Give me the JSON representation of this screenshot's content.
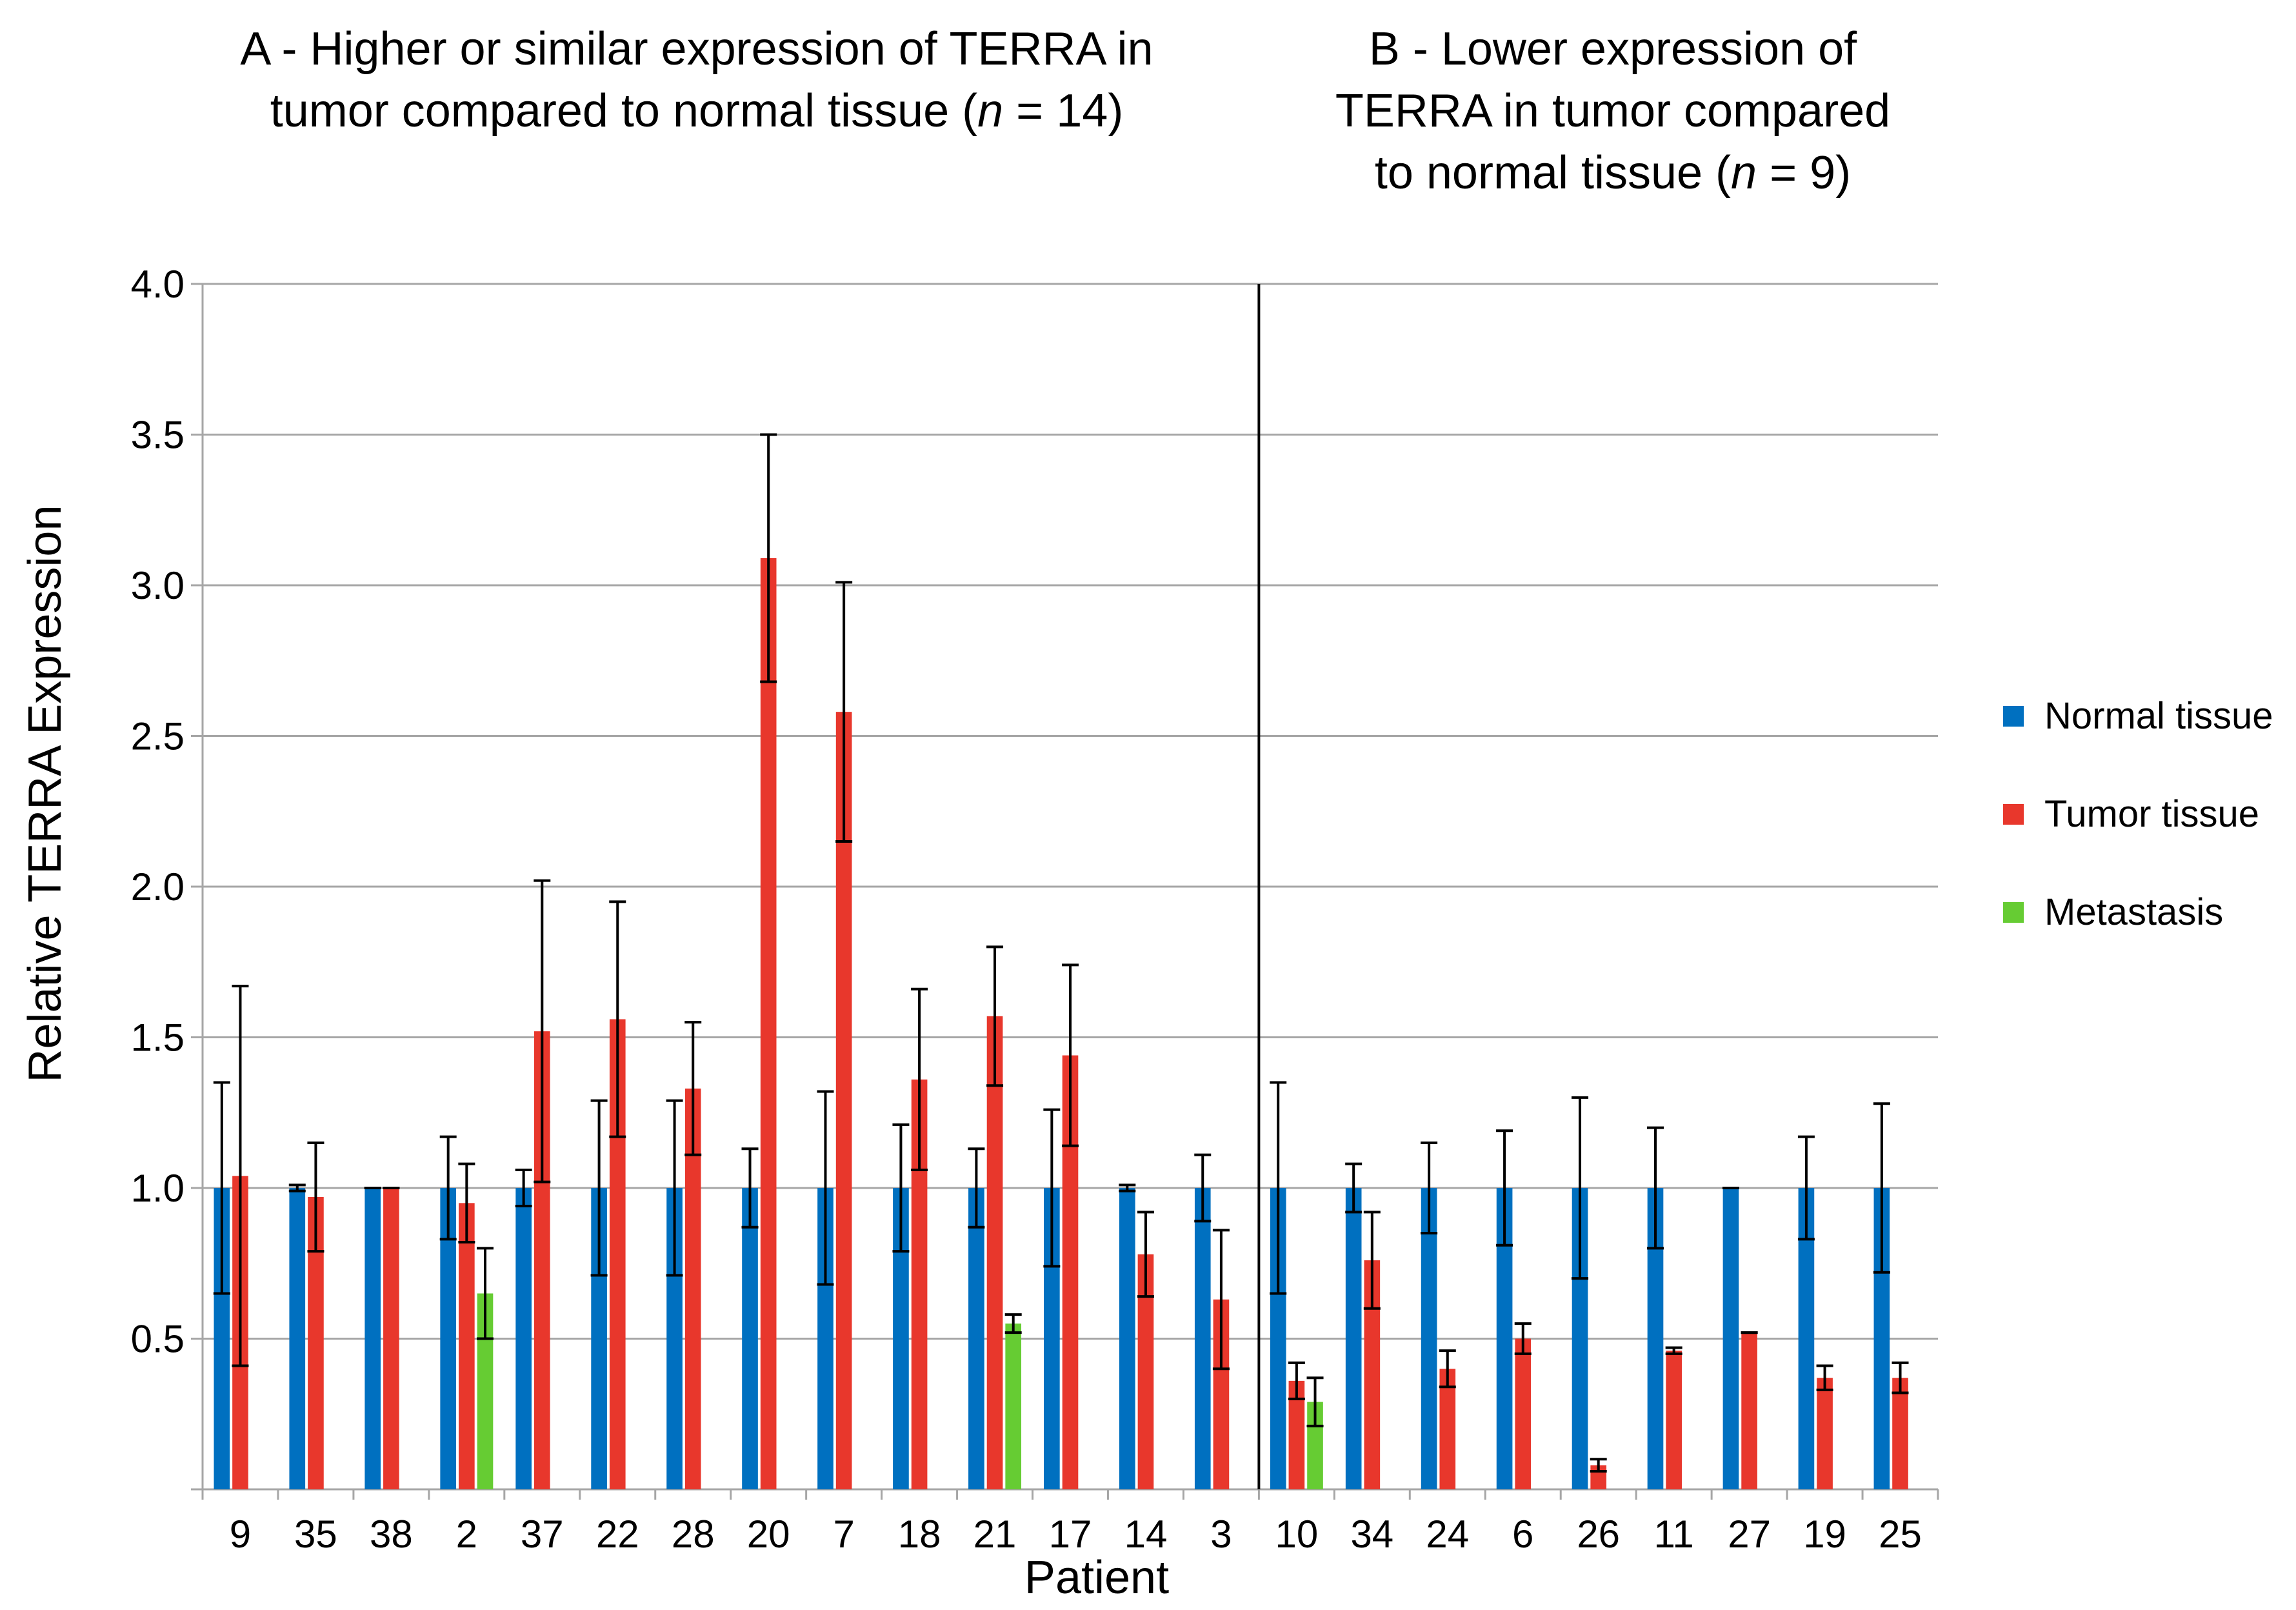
{
  "titles": {
    "a_line1": "A - Higher or similar expression of TERRA in",
    "a_line2_pre": "tumor compared to normal tissue (",
    "a_line2_n": "n",
    "a_line2_post": " = 14)",
    "b_line1": "B - Lower expression of",
    "b_line2": "TERRA in tumor compared",
    "b_line3_pre": "to normal tissue (",
    "b_line3_n": "n",
    "b_line3_post": " = 9)"
  },
  "legend": [
    {
      "label": "Normal tissue",
      "color": "#0070c0"
    },
    {
      "label": "Tumor tissue",
      "color": "#e8372c"
    },
    {
      "label": "Metastasis",
      "color": "#66cc33"
    }
  ],
  "chart_data": {
    "type": "bar",
    "xlabel": "Patient",
    "ylabel": "Relative TERRA Expression",
    "ylim": [
      0,
      4.0
    ],
    "yticks": [
      "0.5",
      "1.0",
      "1.5",
      "2.0",
      "2.5",
      "3.0",
      "3.5",
      "4.0"
    ],
    "grid": true,
    "legend_position": "right",
    "divider_after_category": "3",
    "categories": [
      "9",
      "35",
      "38",
      "2",
      "37",
      "22",
      "28",
      "20",
      "7",
      "18",
      "21",
      "17",
      "14",
      "3",
      "10",
      "34",
      "24",
      "6",
      "26",
      "11",
      "27",
      "19",
      "25"
    ],
    "series": [
      {
        "name": "Normal tissue",
        "color": "#0070c0",
        "values": [
          1.0,
          1.0,
          1.0,
          1.0,
          1.0,
          1.0,
          1.0,
          1.0,
          1.0,
          1.0,
          1.0,
          1.0,
          1.0,
          1.0,
          1.0,
          1.0,
          1.0,
          1.0,
          1.0,
          1.0,
          1.0,
          1.0,
          1.0
        ],
        "errors": [
          0.35,
          0.01,
          0.0,
          0.17,
          0.06,
          0.29,
          0.29,
          0.13,
          0.32,
          0.21,
          0.13,
          0.26,
          0.01,
          0.11,
          0.35,
          0.08,
          0.15,
          0.19,
          0.3,
          0.2,
          0.0,
          0.17,
          0.28
        ]
      },
      {
        "name": "Tumor tissue",
        "color": "#e8372c",
        "values": [
          1.04,
          0.97,
          1.0,
          0.95,
          1.52,
          1.56,
          1.33,
          3.09,
          2.58,
          1.36,
          1.57,
          1.44,
          0.78,
          0.63,
          0.36,
          0.76,
          0.4,
          0.5,
          0.08,
          0.46,
          0.52,
          0.37,
          0.37
        ],
        "errors": [
          0.63,
          0.18,
          0.0,
          0.13,
          0.5,
          0.39,
          0.22,
          0.41,
          0.43,
          0.3,
          0.23,
          0.3,
          0.14,
          0.23,
          0.06,
          0.16,
          0.06,
          0.05,
          0.02,
          0.01,
          0.0,
          0.04,
          0.05
        ]
      },
      {
        "name": "Metastasis",
        "color": "#66cc33",
        "values": [
          null,
          null,
          null,
          0.65,
          null,
          null,
          null,
          null,
          null,
          null,
          0.55,
          null,
          null,
          null,
          0.29,
          null,
          null,
          null,
          null,
          null,
          null,
          null,
          null
        ],
        "errors": [
          null,
          null,
          null,
          0.15,
          null,
          null,
          null,
          null,
          null,
          null,
          0.03,
          null,
          null,
          null,
          0.08,
          null,
          null,
          null,
          null,
          null,
          null,
          null,
          null
        ]
      }
    ]
  }
}
